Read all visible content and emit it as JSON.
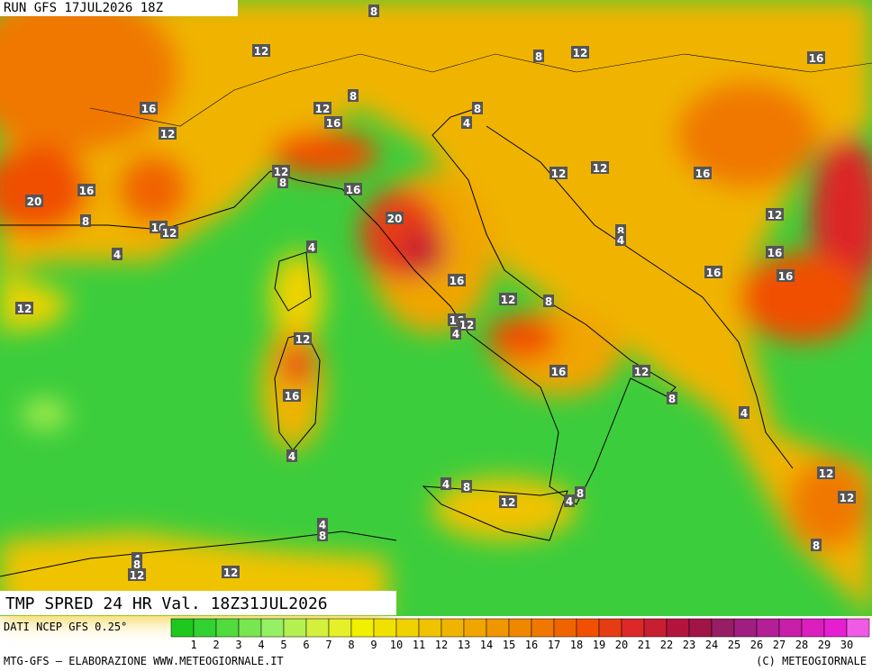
{
  "header": {
    "run": "RUN GFS 17JUL2026 18Z"
  },
  "map": {
    "title": "TMP SPRED 24 HR Val. 18Z31JUL2026",
    "source": "DATI NCEP GFS 0.25°",
    "contour_labels": [
      "8",
      "12",
      "8",
      "12",
      "16",
      "16",
      "12",
      "16",
      "8",
      "12",
      "8",
      "4",
      "12",
      "8",
      "12",
      "12",
      "16",
      "16",
      "20",
      "16",
      "20",
      "8",
      "16",
      "12",
      "12",
      "8",
      "4",
      "4",
      "4",
      "16",
      "16",
      "16",
      "16",
      "12",
      "8",
      "12",
      "16",
      "12",
      "4",
      "12",
      "16",
      "12",
      "16",
      "8",
      "4",
      "4",
      "12",
      "4",
      "8",
      "12",
      "12",
      "8",
      "4",
      "4",
      "8",
      "4",
      "8",
      "12",
      "12",
      "8"
    ]
  },
  "colorbar": {
    "labels": [
      1,
      2,
      3,
      4,
      5,
      6,
      7,
      8,
      9,
      10,
      11,
      12,
      13,
      14,
      15,
      16,
      17,
      18,
      19,
      20,
      21,
      22,
      23,
      24,
      25,
      26,
      27,
      28,
      29,
      30
    ],
    "colors": [
      "#1ec81e",
      "#32d232",
      "#50dc3c",
      "#78e650",
      "#96f064",
      "#b4f050",
      "#d2f03c",
      "#e6f028",
      "#f0f000",
      "#f0e100",
      "#f0d200",
      "#f0c300",
      "#f0b400",
      "#f0a500",
      "#f09600",
      "#f08700",
      "#f07800",
      "#f06400",
      "#f05000",
      "#e63c14",
      "#dc2828",
      "#c81e32",
      "#b4143c",
      "#a01446",
      "#961e64",
      "#a01e82",
      "#b41e96",
      "#c81eaa",
      "#dc1ebe",
      "#e61ed2",
      "#f05ae6"
    ]
  },
  "footer": {
    "left": "MTG-GFS – ELABORAZIONE WWW.METEOGIORNALE.IT",
    "right": "(C) METEOGIORNALE"
  }
}
